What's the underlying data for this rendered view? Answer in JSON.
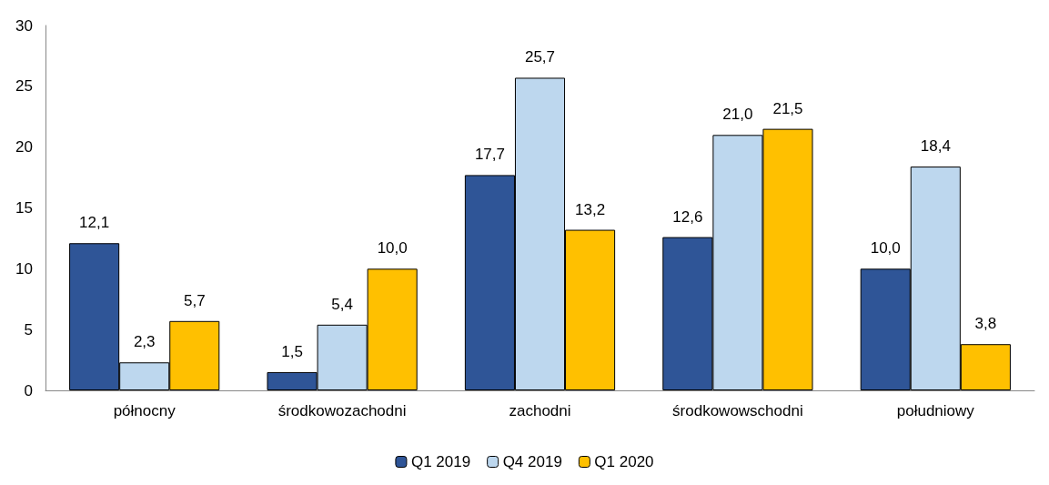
{
  "chart_data": {
    "type": "bar",
    "categories": [
      "północny",
      "środkowozachodni",
      "zachodni",
      "środkowowschodni",
      "południowy"
    ],
    "series": [
      {
        "name": "Q1 2019",
        "color": "#2f5597",
        "values": [
          12.1,
          1.5,
          17.7,
          12.6,
          10.0
        ],
        "value_labels": [
          "12,1",
          "1,5",
          "17,7",
          "12,6",
          "10,0"
        ]
      },
      {
        "name": "Q4 2019",
        "color": "#bdd7ee",
        "values": [
          2.3,
          5.4,
          25.7,
          21.0,
          18.4
        ],
        "value_labels": [
          "2,3",
          "5,4",
          "25,7",
          "21,0",
          "18,4"
        ]
      },
      {
        "name": "Q1 2020",
        "color": "#ffc000",
        "values": [
          5.7,
          10.0,
          13.2,
          21.5,
          3.8
        ],
        "value_labels": [
          "5,7",
          "10,0",
          "13,2",
          "21,5",
          "3,8"
        ]
      }
    ],
    "ylim": [
      0,
      30
    ],
    "yticks": [
      0,
      5,
      10,
      15,
      20,
      25,
      30
    ],
    "grid": false,
    "legend": "bottom"
  }
}
